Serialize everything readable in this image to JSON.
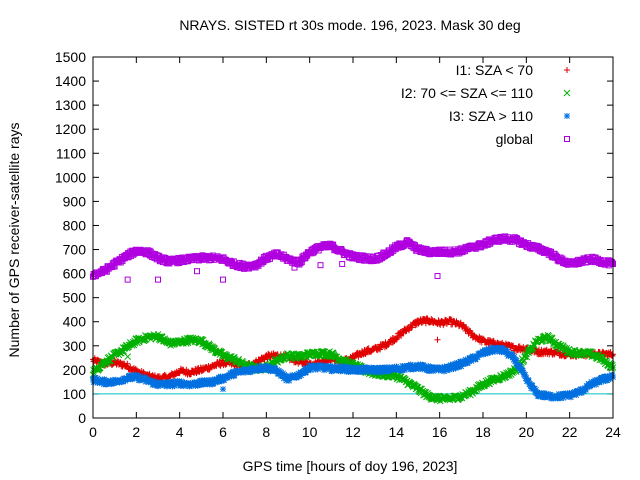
{
  "chart_data": {
    "type": "scatter",
    "title": "NRAYS. SISTED rt 30s mode. 196, 2023. Mask 30 deg",
    "xlabel": "GPS time [hours of doy 196, 2023]",
    "ylabel": "Number of GPS receiver-satellite rays",
    "xlim": [
      0,
      24
    ],
    "ylim": [
      0,
      1500
    ],
    "xticks": [
      0,
      2,
      4,
      6,
      8,
      10,
      12,
      14,
      16,
      18,
      20,
      22,
      24
    ],
    "yticks": [
      0,
      100,
      200,
      300,
      400,
      500,
      600,
      700,
      800,
      900,
      1000,
      1100,
      1200,
      1300,
      1400,
      1500
    ],
    "threshold_line": {
      "y": 100,
      "color": "#00c0c0"
    },
    "legend_position": "top-right",
    "series": [
      {
        "name": "I1: SZA < 70",
        "marker": "+",
        "color": "#e00000",
        "x": [
          0,
          0.5,
          1,
          1.5,
          2,
          2.5,
          3,
          3.5,
          4,
          4.5,
          5,
          5.5,
          6,
          6.5,
          7,
          7.5,
          8,
          8.5,
          9,
          9.5,
          10,
          10.5,
          11,
          11.5,
          12,
          12.5,
          13,
          13.5,
          14,
          14.5,
          15,
          15.5,
          16,
          16.5,
          17,
          17.5,
          18,
          18.5,
          19,
          19.5,
          20,
          20.5,
          21,
          21.5,
          22,
          22.5,
          23,
          23.5,
          24
        ],
        "values": [
          240,
          225,
          230,
          220,
          195,
          175,
          165,
          170,
          195,
          190,
          200,
          215,
          230,
          225,
          215,
          230,
          255,
          260,
          250,
          235,
          225,
          230,
          250,
          235,
          250,
          275,
          285,
          305,
          335,
          370,
          400,
          405,
          395,
          400,
          385,
          345,
          320,
          310,
          300,
          290,
          290,
          275,
          275,
          270,
          265,
          265,
          265,
          265,
          265
        ]
      },
      {
        "name": "I2: 70 <= SZA <= 110",
        "marker": "x",
        "color": "#00b000",
        "x": [
          0,
          0.5,
          1,
          1.5,
          2,
          2.5,
          3,
          3.5,
          4,
          4.5,
          5,
          5.5,
          6,
          6.5,
          7,
          7.5,
          8,
          8.5,
          9,
          9.5,
          10,
          10.5,
          11,
          11.5,
          12,
          12.5,
          13,
          13.5,
          14,
          14.5,
          15,
          15.5,
          16,
          16.5,
          17,
          17.5,
          18,
          18.5,
          19,
          19.5,
          20,
          20.5,
          21,
          21.5,
          22,
          22.5,
          23,
          23.5,
          24
        ],
        "values": [
          190,
          230,
          260,
          290,
          320,
          335,
          340,
          310,
          315,
          325,
          320,
          290,
          260,
          245,
          220,
          205,
          210,
          240,
          260,
          255,
          265,
          270,
          265,
          240,
          220,
          200,
          185,
          180,
          175,
          150,
          120,
          90,
          80,
          80,
          90,
          110,
          140,
          160,
          175,
          200,
          260,
          320,
          335,
          300,
          275,
          270,
          265,
          245,
          210
        ]
      },
      {
        "name": "I3: SZA > 110",
        "marker": "*",
        "color": "#0070e0",
        "x": [
          0,
          0.5,
          1,
          1.5,
          2,
          2.5,
          3,
          3.5,
          4,
          4.5,
          5,
          5.5,
          6,
          6.5,
          7,
          7.5,
          8,
          8.5,
          9,
          9.5,
          10,
          10.5,
          11,
          11.5,
          12,
          12.5,
          13,
          13.5,
          14,
          14.5,
          15,
          15.5,
          16,
          16.5,
          17,
          17.5,
          18,
          18.5,
          19,
          19.5,
          20,
          20.5,
          21,
          21.5,
          22,
          22.5,
          23,
          23.5,
          24
        ],
        "values": [
          160,
          150,
          150,
          165,
          170,
          155,
          140,
          140,
          145,
          140,
          145,
          150,
          165,
          185,
          195,
          205,
          210,
          195,
          160,
          180,
          210,
          210,
          205,
          205,
          200,
          200,
          200,
          200,
          205,
          210,
          215,
          205,
          200,
          210,
          225,
          245,
          270,
          285,
          280,
          240,
          160,
          100,
          90,
          90,
          95,
          110,
          140,
          160,
          170
        ]
      },
      {
        "name": "global",
        "marker": "square",
        "color": "#b000e0",
        "x": [
          0,
          0.5,
          1,
          1.5,
          2,
          2.5,
          3,
          3.5,
          4,
          4.5,
          5,
          5.5,
          6,
          6.5,
          7,
          7.5,
          8,
          8.5,
          9,
          9.5,
          10,
          10.5,
          11,
          11.5,
          12,
          12.5,
          13,
          13.5,
          14,
          14.5,
          15,
          15.5,
          16,
          16.5,
          17,
          17.5,
          18,
          18.5,
          19,
          19.5,
          20,
          20.5,
          21,
          21.5,
          22,
          22.5,
          23,
          23.5,
          24
        ],
        "values": [
          595,
          610,
          640,
          670,
          695,
          690,
          665,
          650,
          655,
          660,
          665,
          665,
          660,
          640,
          630,
          635,
          665,
          680,
          660,
          645,
          690,
          710,
          715,
          690,
          670,
          665,
          660,
          680,
          710,
          730,
          700,
          690,
          690,
          690,
          695,
          710,
          720,
          740,
          745,
          740,
          720,
          705,
          690,
          660,
          640,
          650,
          660,
          650,
          640
        ]
      }
    ],
    "outliers": {
      "global": {
        "x": [
          1.6,
          3,
          4.8,
          6,
          9.3,
          10.5,
          11.5,
          15.9
        ],
        "values": [
          575,
          575,
          610,
          575,
          625,
          635,
          640,
          590
        ]
      },
      "I1: SZA < 70": {
        "x": [
          15.9
        ],
        "values": [
          325
        ]
      },
      "I2: 70 <= SZA <= 110": {
        "x": [
          1.6
        ],
        "values": [
          255
        ]
      },
      "I3: SZA > 110": {
        "x": [
          6
        ],
        "values": [
          120
        ]
      }
    }
  }
}
